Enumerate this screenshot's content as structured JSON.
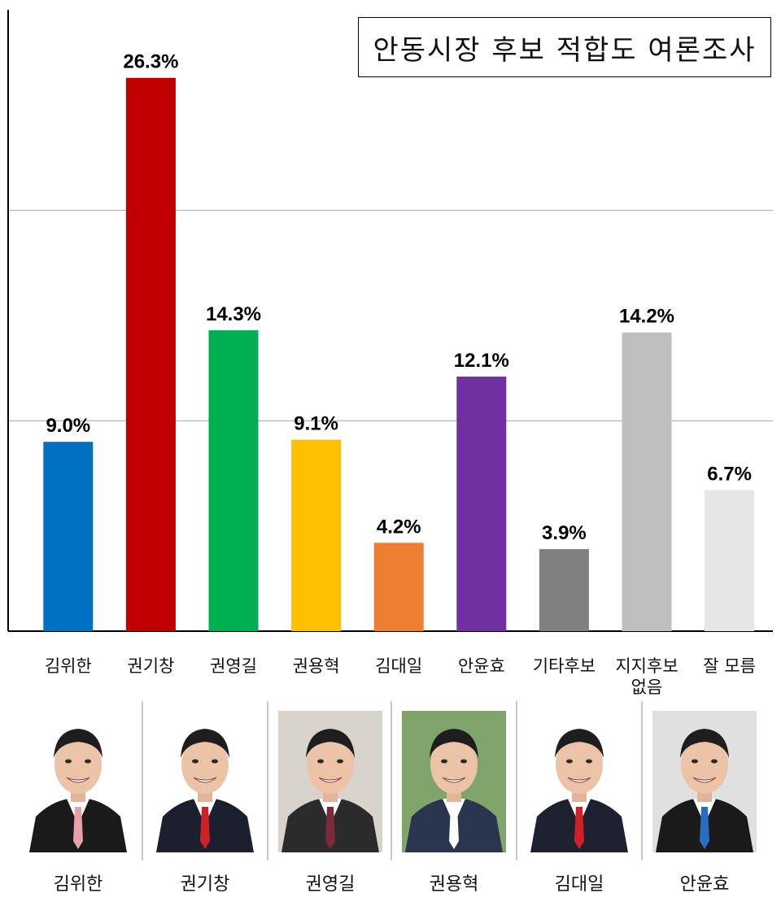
{
  "chart_data": {
    "type": "bar",
    "title": "안동시장 후보 적합도 여론조사",
    "categories": [
      [
        "김위한"
      ],
      [
        "권기창"
      ],
      [
        "권영길"
      ],
      [
        "권용혁"
      ],
      [
        "김대일"
      ],
      [
        "안윤효"
      ],
      [
        "기타후보"
      ],
      [
        "지지후보",
        "없음"
      ],
      [
        "잘  모름"
      ]
    ],
    "values": [
      9.0,
      26.3,
      14.3,
      9.1,
      4.2,
      12.1,
      3.9,
      14.2,
      6.7
    ],
    "value_labels": [
      "9.0%",
      "26.3%",
      "14.3%",
      "9.1%",
      "4.2%",
      "12.1%",
      "3.9%",
      "14.2%",
      "6.7%"
    ],
    "colors": [
      "#0070c0",
      "#c00000",
      "#00b050",
      "#ffc000",
      "#ed7d31",
      "#7030a0",
      "#808080",
      "#bfbfbf",
      "#e6e6e6"
    ],
    "ylim": [
      0,
      30
    ],
    "grid": true
  },
  "photos": [
    {
      "name": "김위한",
      "bg": "#ffffff",
      "suit": "#1a1a1a",
      "tie": "#e8a0a8"
    },
    {
      "name": "권기창",
      "bg": "#ffffff",
      "suit": "#1c1f2e",
      "tie": "#d0202a"
    },
    {
      "name": "권영길",
      "bg": "#d8d4cc",
      "suit": "#2b2b2b",
      "tie": "#7a2a3a"
    },
    {
      "name": "권용혁",
      "bg": "#7fa56a",
      "suit": "#2a3550",
      "tie": "#ffffff"
    },
    {
      "name": "김대일",
      "bg": "#ffffff",
      "suit": "#1e2230",
      "tie": "#d0202a"
    },
    {
      "name": "안윤효",
      "bg": "#e0e0e0",
      "suit": "#1a1a1a",
      "tie": "#2a6cc0"
    }
  ]
}
